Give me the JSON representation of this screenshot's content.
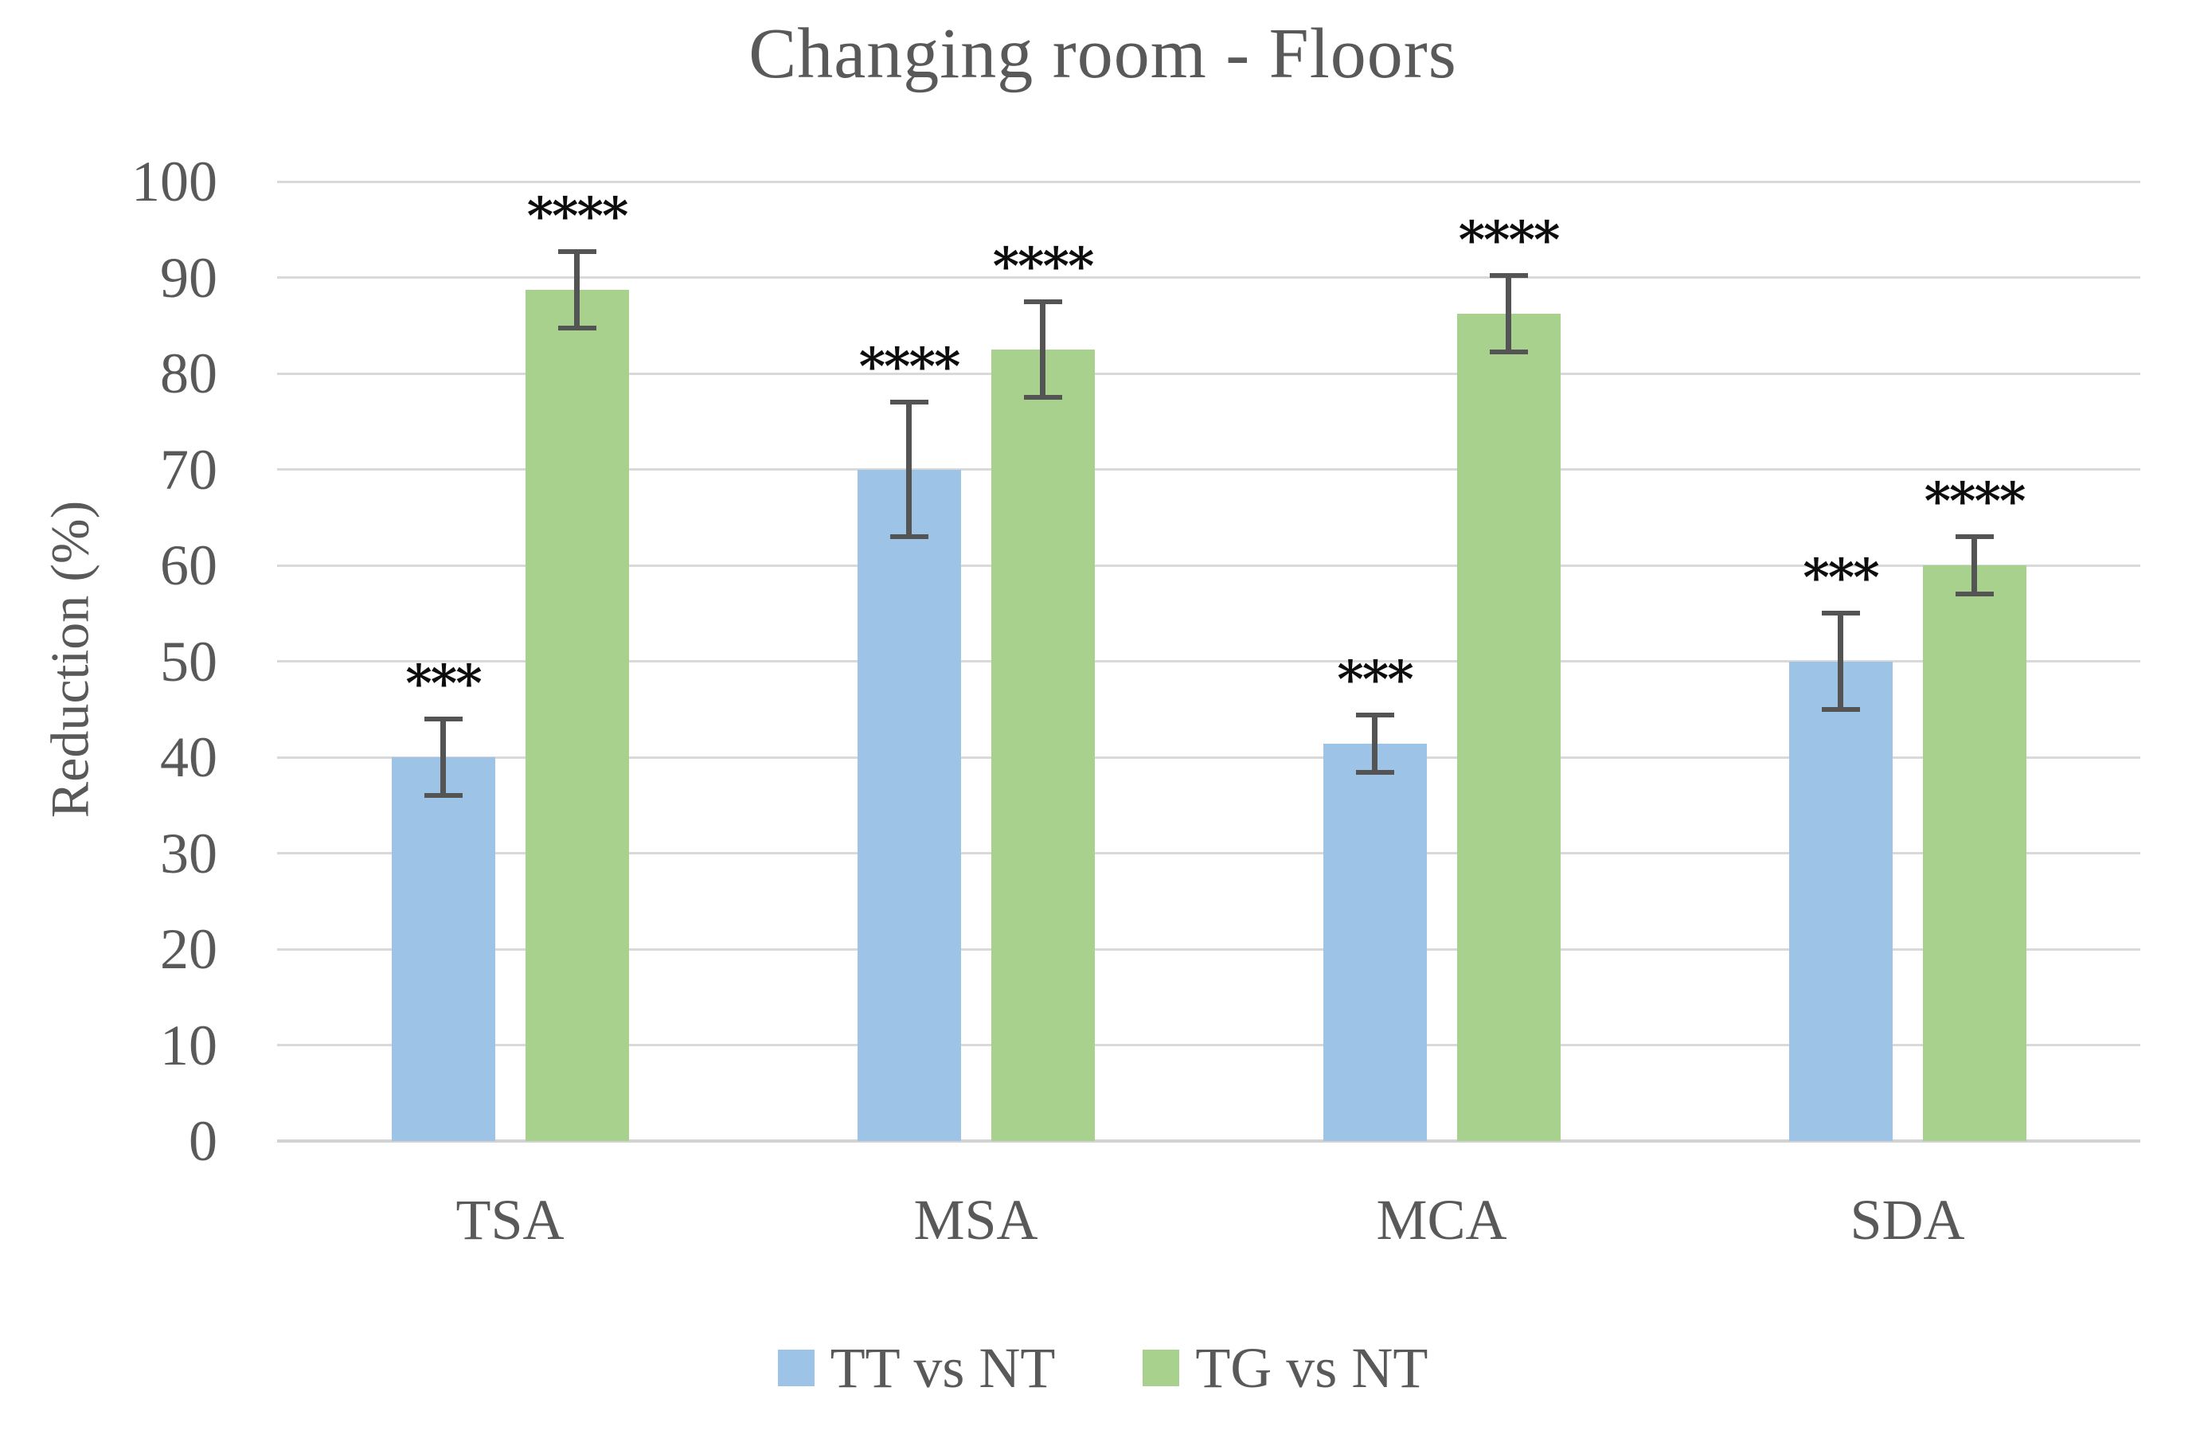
{
  "title": "Changing room - Floors",
  "y_axis": {
    "label": "Reduction (%)"
  },
  "chart_data": {
    "type": "bar",
    "title": "Changing room - Floors",
    "categories": [
      "TSA",
      "MSA",
      "MCA",
      "SDA"
    ],
    "series": [
      {
        "name": "TT vs NT",
        "color": "#9DC3E6",
        "values": [
          40,
          70,
          41.4,
          50
        ],
        "errors": [
          4,
          7,
          3,
          5
        ],
        "significance": [
          "***",
          "****",
          "***",
          "***"
        ]
      },
      {
        "name": "TG vs NT",
        "color": "#A9D18E",
        "values": [
          88.7,
          82.5,
          86.2,
          60
        ],
        "errors": [
          4,
          5,
          4,
          3
        ],
        "significance": [
          "****",
          "****",
          "****",
          "****"
        ]
      }
    ],
    "ylabel": "Reduction (%)",
    "xlabel": "",
    "ylim": [
      0,
      100
    ],
    "yticks": [
      0,
      10,
      20,
      30,
      40,
      50,
      60,
      70,
      80,
      90,
      100
    ],
    "grid": true,
    "error_bars": true,
    "legend_position": "bottom",
    "colors": {
      "grid": "#d9d9d9",
      "axis": "#d2d2d2",
      "text": "#595959",
      "error_bar": "#545454",
      "stars": "#0d0d0d"
    }
  }
}
